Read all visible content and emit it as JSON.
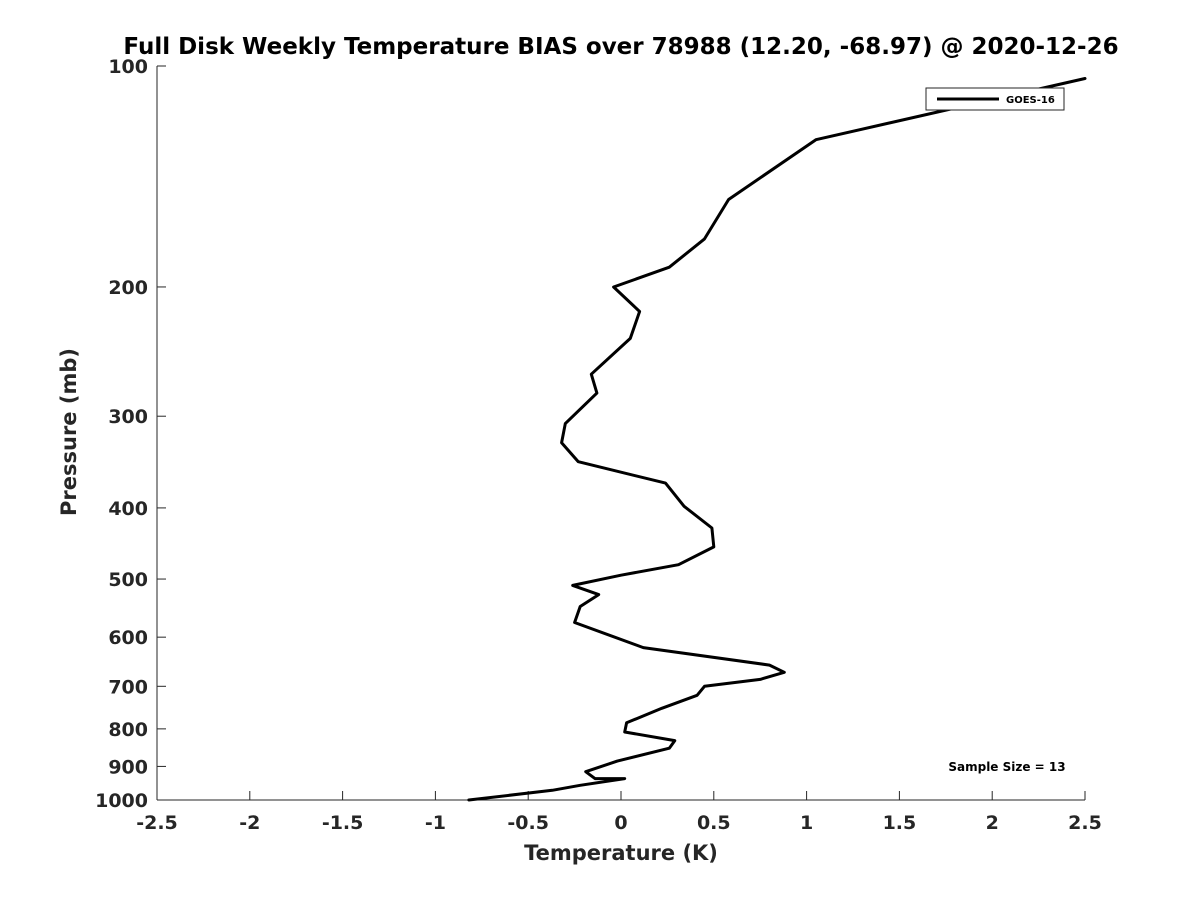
{
  "chart_data": {
    "type": "line",
    "title": "Full Disk Weekly Temperature BIAS over 78988 (12.20, -68.97) @ 2020-12-26",
    "xlabel": "Temperature (K)",
    "ylabel": "Pressure (mb)",
    "xlim": [
      -2.5,
      2.5
    ],
    "ylim": [
      100,
      1000
    ],
    "yscale": "log",
    "y_reversed": true,
    "grid": false,
    "xticks": [
      -2.5,
      -2,
      -1.5,
      -1,
      -0.5,
      0,
      0.5,
      1,
      1.5,
      2,
      2.5
    ],
    "xtick_labels": [
      "-2.5",
      "-2",
      "-1.5",
      "-1",
      "-0.5",
      "0",
      "0.5",
      "1",
      "1.5",
      "2",
      "2.5"
    ],
    "yticks": [
      100,
      200,
      300,
      400,
      500,
      600,
      700,
      800,
      900,
      1000
    ],
    "ytick_labels": [
      "100",
      "200",
      "300",
      "400",
      "500",
      "600",
      "700",
      "800",
      "900",
      "1000"
    ],
    "legend_position": "top-right",
    "series": [
      {
        "name": "GOES-16",
        "color": "#000000",
        "x": [
          2.5,
          1.05,
          0.58,
          0.45,
          0.26,
          -0.04,
          0.1,
          0.05,
          -0.16,
          -0.13,
          -0.3,
          -0.32,
          -0.23,
          0.24,
          0.34,
          0.49,
          0.5,
          0.31,
          0.0,
          -0.26,
          -0.12,
          -0.22,
          -0.25,
          0.12,
          0.8,
          0.88,
          0.75,
          0.45,
          0.41,
          0.22,
          0.03,
          0.02,
          0.29,
          0.26,
          -0.02,
          -0.19,
          -0.14,
          0.02,
          -0.22,
          -0.37,
          -0.82
        ],
        "y": [
          104,
          126,
          152,
          172,
          188,
          200,
          216,
          235,
          263,
          279,
          307,
          326,
          346,
          370,
          398,
          426,
          452,
          478,
          494,
          510,
          525,
          545,
          573,
          620,
          655,
          670,
          685,
          700,
          720,
          750,
          785,
          808,
          830,
          850,
          885,
          915,
          935,
          935,
          955,
          970,
          1000
        ]
      }
    ],
    "annotations": [
      "Sample Size = 13"
    ]
  }
}
